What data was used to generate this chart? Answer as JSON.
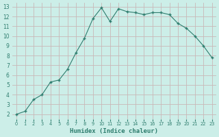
{
  "x": [
    0,
    1,
    2,
    3,
    4,
    5,
    6,
    7,
    8,
    9,
    10,
    11,
    12,
    13,
    14,
    15,
    16,
    17,
    18,
    19,
    20,
    21,
    22,
    23
  ],
  "y": [
    2.0,
    2.3,
    3.5,
    4.0,
    5.3,
    5.5,
    6.6,
    8.3,
    9.8,
    11.8,
    12.9,
    11.5,
    12.8,
    12.5,
    12.4,
    12.2,
    12.4,
    12.4,
    12.2,
    11.3,
    10.8,
    10.0,
    9.0,
    7.8
  ],
  "xlabel": "Humidex (Indice chaleur)",
  "bg_color": "#cceee8",
  "line_color": "#2e7d6e",
  "grid_color": "#c9b8b8",
  "ylim_min": 1.5,
  "ylim_max": 13.4,
  "xlim_min": -0.5,
  "xlim_max": 23.5,
  "yticks": [
    2,
    3,
    4,
    5,
    6,
    7,
    8,
    9,
    10,
    11,
    12,
    13
  ],
  "xticks": [
    0,
    1,
    2,
    3,
    4,
    5,
    6,
    7,
    8,
    9,
    10,
    11,
    12,
    13,
    14,
    15,
    16,
    17,
    18,
    19,
    20,
    21,
    22,
    23
  ]
}
